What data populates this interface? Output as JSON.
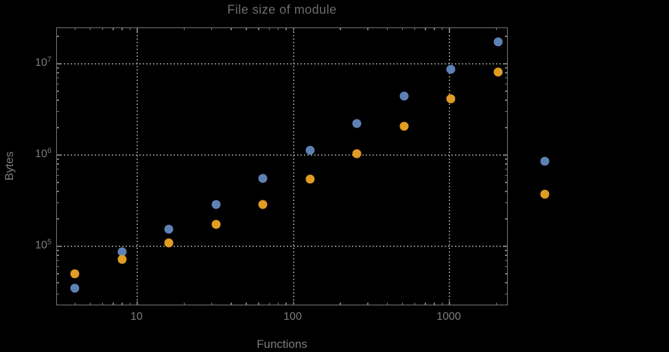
{
  "title": "File size of module",
  "colors": {
    "background": "#000000",
    "frame": "#7b7b7b",
    "gridlines": "#7d7d7d",
    "text": "#7d7d7d",
    "series_blue": "#5e81b5",
    "series_orange": "#e19c24"
  },
  "chart_data": {
    "type": "scatter",
    "title": "File size of module",
    "xlabel": "Functions",
    "ylabel": "Bytes",
    "x_scale": "log10",
    "y_scale": "log10",
    "xlim": [
      3.1,
      2400
    ],
    "ylim": [
      22000,
      25000000
    ],
    "grid": "dotted lines at decades, both axes",
    "legend_position": "none",
    "x": [
      4,
      8,
      16,
      32,
      64,
      128,
      256,
      512,
      1024,
      2048,
      4096
    ],
    "series": [
      {
        "name": "blue",
        "color": "#5e81b5",
        "values": [
          35000,
          87000,
          155000,
          290000,
          555000,
          1130000,
          2200000,
          4400000,
          8700000,
          17500000,
          850000
        ]
      },
      {
        "name": "orange",
        "color": "#e19c24",
        "values": [
          50000,
          72000,
          109000,
          174000,
          290000,
          545000,
          1040000,
          2070000,
          4100000,
          8100000,
          370000
        ]
      }
    ],
    "x_ticks": [
      {
        "value": 10,
        "label": "10"
      },
      {
        "value": 100,
        "label": "100"
      },
      {
        "value": 1000,
        "label": "1000"
      }
    ],
    "y_ticks": [
      {
        "value": 100000,
        "mantissa": "10",
        "exponent": "5"
      },
      {
        "value": 1000000,
        "mantissa": "10",
        "exponent": "6"
      },
      {
        "value": 10000000,
        "mantissa": "10",
        "exponent": "7"
      }
    ],
    "note_points_clipped": "the two x=4096 points render outside the right frame edge"
  }
}
